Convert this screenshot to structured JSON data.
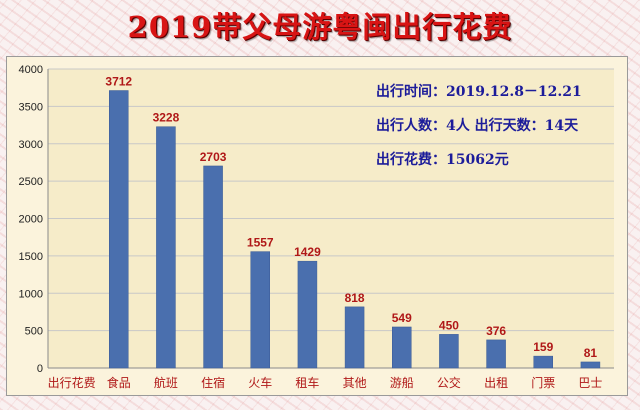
{
  "title": "2019带父母游粤闽出行花费",
  "info": {
    "line1": "出行时间：2019.12.8－12.21",
    "line2": "出行人数：4人  出行天数：14天",
    "line3": "出行花费：15062元"
  },
  "colors": {
    "bar": "#4a6fae",
    "value_label": "#b01818",
    "grid": "#c8c8c8"
  },
  "chart_data": {
    "type": "bar",
    "categories": [
      "出行花费",
      "食品",
      "航班",
      "住宿",
      "火车",
      "租车",
      "其他",
      "游船",
      "公交",
      "出租",
      "门票",
      "巴士"
    ],
    "values": [
      null,
      3712,
      3228,
      2703,
      1557,
      1429,
      818,
      549,
      450,
      376,
      159,
      81
    ],
    "data_labels": [
      "",
      "3712",
      "3228",
      "2703",
      "1557",
      "1429",
      "818",
      "549",
      "450",
      "376",
      "159",
      "81"
    ],
    "yticks": [
      "0",
      "500",
      "1000",
      "1500",
      "2000",
      "2500",
      "3000",
      "3500",
      "4000"
    ],
    "ylim": [
      0,
      4000
    ],
    "grid": true,
    "title": "",
    "xlabel": "",
    "ylabel": ""
  }
}
